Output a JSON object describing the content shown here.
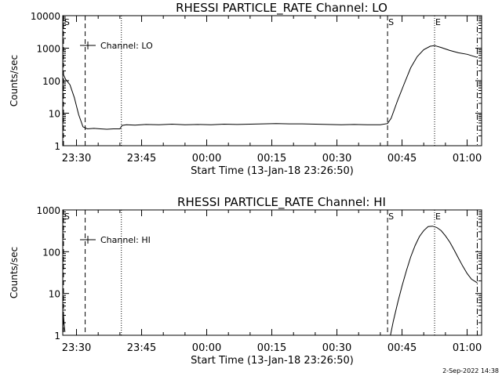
{
  "chart_data": [
    {
      "type": "line",
      "title": "RHESSI PARTICLE_RATE Channel: LO",
      "xlabel": "Start Time (13-Jan-18 23:26:50)",
      "ylabel": "Counts/sec",
      "y_scale": "log",
      "ylim": [
        1,
        10000
      ],
      "xlim": [
        "23:26:50",
        "01:03:20"
      ],
      "x_ticks": [
        "23:30",
        "23:45",
        "00:00",
        "00:15",
        "00:30",
        "00:45",
        "01:00"
      ],
      "y_ticks": [
        "1",
        "10",
        "100",
        "1000",
        "10000"
      ],
      "legend": {
        "label": "Channel: LO",
        "placement": "top-left"
      },
      "markers": [
        {
          "label": "S",
          "time": "23:27:00",
          "style": "dashed"
        },
        {
          "label": "",
          "time": "23:32:00",
          "style": "dashed"
        },
        {
          "label": "",
          "time": "23:40:20",
          "style": "dotted"
        },
        {
          "label": "S",
          "time": "00:41:40",
          "style": "dashed"
        },
        {
          "label": "E",
          "time": "00:52:30",
          "style": "dotted"
        },
        {
          "label": "",
          "time": "01:02:20",
          "style": "dashdot"
        }
      ],
      "series": [
        {
          "name": "Channel: LO",
          "x": [
            "23:26:50",
            "23:27:30",
            "23:28:30",
            "23:29:30",
            "23:30:30",
            "23:31:30",
            "23:32:30",
            "23:34:00",
            "23:35:30",
            "23:37:00",
            "23:38:30",
            "23:40:00",
            "23:40:30",
            "23:41:30",
            "23:43:30",
            "23:46:00",
            "23:49:00",
            "23:52:00",
            "23:55:00",
            "23:58:00",
            "00:01:00",
            "00:04:00",
            "00:07:00",
            "00:10:00",
            "00:13:00",
            "00:16:00",
            "00:19:00",
            "00:22:00",
            "00:25:00",
            "00:28:00",
            "00:31:00",
            "00:34:00",
            "00:37:00",
            "00:40:00",
            "00:41:40",
            "00:42:30",
            "00:44:00",
            "00:45:30",
            "00:47:00",
            "00:48:30",
            "00:50:00",
            "00:51:30",
            "00:52:30",
            "00:54:00",
            "00:56:00",
            "00:58:00",
            "01:00:00",
            "01:02:20"
          ],
          "y": [
            170,
            110,
            75,
            30,
            9,
            3.8,
            3.3,
            3.4,
            3.3,
            3.2,
            3.3,
            3.3,
            4.2,
            4.4,
            4.3,
            4.5,
            4.4,
            4.6,
            4.4,
            4.5,
            4.4,
            4.6,
            4.5,
            4.6,
            4.7,
            4.8,
            4.7,
            4.7,
            4.6,
            4.5,
            4.4,
            4.5,
            4.4,
            4.4,
            4.8,
            7,
            25,
            80,
            250,
            550,
            900,
            1150,
            1200,
            1050,
            850,
            720,
            650,
            520
          ]
        }
      ]
    },
    {
      "type": "line",
      "title": "RHESSI PARTICLE_RATE Channel: HI",
      "xlabel": "Start Time (13-Jan-18 23:26:50)",
      "ylabel": "Counts/sec",
      "y_scale": "log",
      "ylim": [
        1,
        1000
      ],
      "xlim": [
        "23:26:50",
        "01:03:20"
      ],
      "x_ticks": [
        "23:30",
        "23:45",
        "00:00",
        "00:15",
        "00:30",
        "00:45",
        "01:00"
      ],
      "y_ticks": [
        "1",
        "10",
        "100",
        "1000"
      ],
      "legend": {
        "label": "Channel: HI",
        "placement": "top-left"
      },
      "markers": [
        {
          "label": "S",
          "time": "23:27:00",
          "style": "dashed"
        },
        {
          "label": "",
          "time": "23:32:00",
          "style": "dashed"
        },
        {
          "label": "",
          "time": "23:40:20",
          "style": "dotted"
        },
        {
          "label": "S",
          "time": "00:41:40",
          "style": "dashed"
        },
        {
          "label": "E",
          "time": "00:52:30",
          "style": "dotted"
        },
        {
          "label": "",
          "time": "01:02:20",
          "style": "dashdot"
        }
      ],
      "series": [
        {
          "name": "Channel: HI",
          "segments": [
            {
              "x": [
                "23:26:50",
                "23:27:00",
                "23:27:10",
                "23:27:20"
              ],
              "y": [
                1.2,
                3.0,
                1.8,
                1.2
              ]
            },
            {
              "x": [
                "00:42:20",
                "00:43:00",
                "00:44:00",
                "00:45:00",
                "00:46:00",
                "00:47:00",
                "00:48:00",
                "00:49:00",
                "00:50:00",
                "00:51:00",
                "00:52:00",
                "00:53:00",
                "00:54:00",
                "00:55:00",
                "00:56:00",
                "00:57:00",
                "00:58:00",
                "00:59:00",
                "01:00:00",
                "01:01:00",
                "01:02:20"
              ],
              "y": [
                1.0,
                2.2,
                6,
                15,
                35,
                75,
                140,
                230,
                320,
                400,
                410,
                380,
                320,
                240,
                170,
                110,
                70,
                45,
                30,
                22,
                18
              ]
            }
          ]
        }
      ]
    }
  ],
  "footer": {
    "timestamp": "2-Sep-2022 14:38"
  },
  "style": {
    "background": "#ffffff",
    "ink": "#000000"
  }
}
